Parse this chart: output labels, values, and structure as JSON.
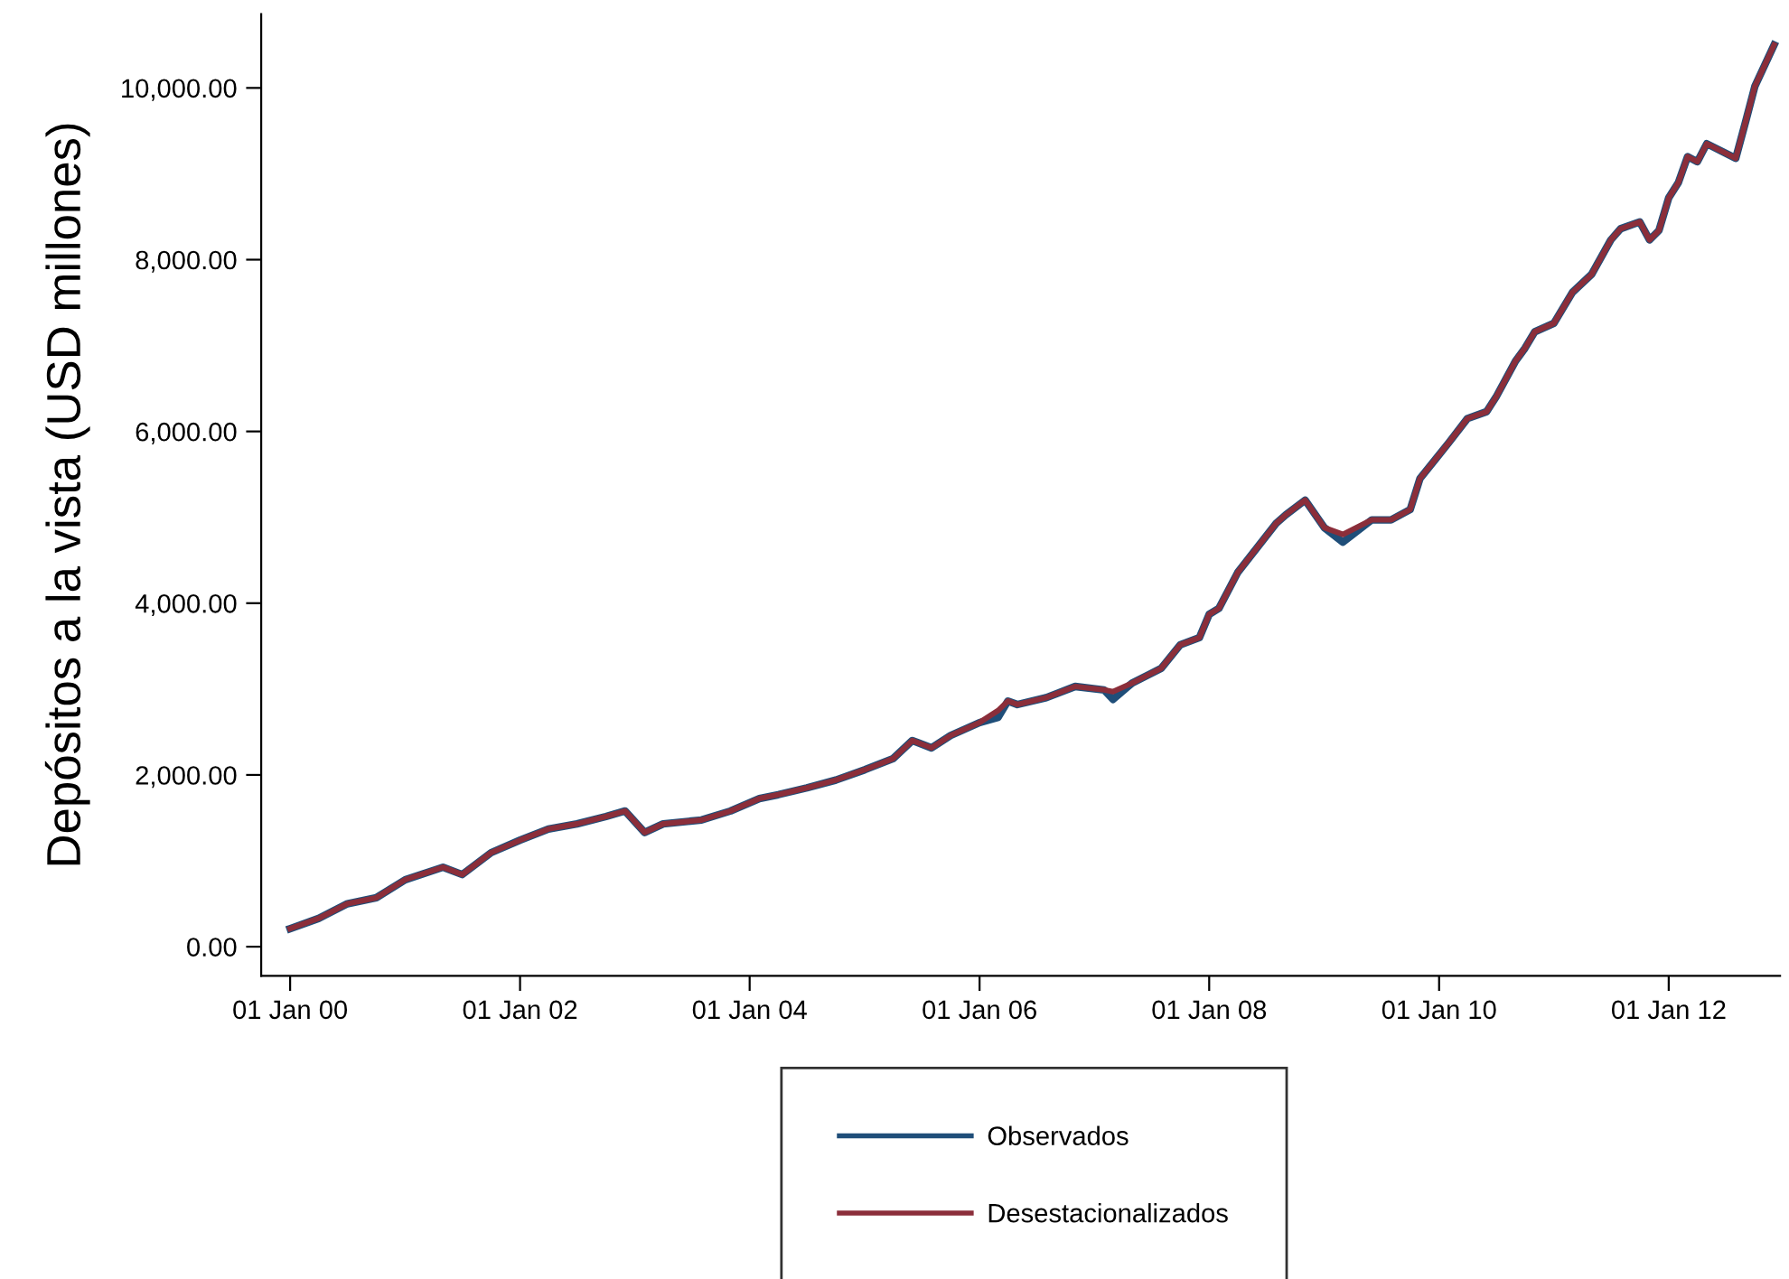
{
  "chart_data": {
    "type": "line",
    "ylabel": "Depósitos a la vista (USD millones)",
    "x": [
      "2000-01",
      "2000-04",
      "2000-07",
      "2000-10",
      "2001-01",
      "2001-05",
      "2001-07",
      "2001-10",
      "2002-01",
      "2002-04",
      "2002-07",
      "2002-10",
      "2002-12",
      "2003-02",
      "2003-04",
      "2003-08",
      "2003-11",
      "2004-02",
      "2004-04",
      "2004-07",
      "2004-10",
      "2005-01",
      "2005-04",
      "2005-06",
      "2005-08",
      "2005-10",
      "2006-01",
      "2006-03",
      "2006-04",
      "2006-05",
      "2006-08",
      "2006-11",
      "2007-02",
      "2007-03",
      "2007-05",
      "2007-08",
      "2007-10",
      "2007-12",
      "2008-01",
      "2008-02",
      "2008-04",
      "2008-08",
      "2008-09",
      "2008-11",
      "2009-01",
      "2009-03",
      "2009-06",
      "2009-08",
      "2009-10",
      "2009-11",
      "2010-02",
      "2010-04",
      "2010-06",
      "2010-07",
      "2010-09",
      "2010-10",
      "2010-11",
      "2011-01",
      "2011-03",
      "2011-05",
      "2011-07",
      "2011-08",
      "2011-10",
      "2011-11",
      "2011-12",
      "2012-01",
      "2012-02",
      "2012-03",
      "2012-04",
      "2012-05",
      "2012-08",
      "2012-09",
      "2012-10",
      "2012-12"
    ],
    "series": [
      {
        "name": "Observados",
        "color": "#1f4e79",
        "values": [
          210,
          330,
          500,
          570,
          780,
          925,
          840,
          1095,
          1240,
          1370,
          1430,
          1515,
          1580,
          1330,
          1430,
          1475,
          1580,
          1725,
          1770,
          1850,
          1940,
          2060,
          2190,
          2400,
          2315,
          2460,
          2610,
          2670,
          2860,
          2820,
          2900,
          3030,
          2990,
          2880,
          3070,
          3240,
          3515,
          3600,
          3870,
          3940,
          4360,
          4930,
          5030,
          5200,
          4880,
          4710,
          4970,
          4970,
          5090,
          5450,
          5870,
          6150,
          6230,
          6400,
          6820,
          6970,
          7160,
          7260,
          7620,
          7830,
          8230,
          8360,
          8440,
          8230,
          8340,
          8720,
          8900,
          9200,
          9140,
          9350,
          9180,
          9600,
          10020,
          10500
        ]
      },
      {
        "name": "Desestacionalizados",
        "color": "#8b2e3a",
        "values": [
          210,
          330,
          500,
          570,
          780,
          925,
          840,
          1095,
          1240,
          1370,
          1430,
          1515,
          1580,
          1330,
          1430,
          1475,
          1580,
          1725,
          1770,
          1850,
          1940,
          2060,
          2190,
          2400,
          2315,
          2460,
          2610,
          2750,
          2860,
          2820,
          2900,
          3030,
          2990,
          2970,
          3070,
          3240,
          3515,
          3600,
          3870,
          3940,
          4360,
          4930,
          5030,
          5200,
          4880,
          4800,
          4970,
          4970,
          5090,
          5450,
          5870,
          6150,
          6230,
          6400,
          6820,
          6970,
          7160,
          7260,
          7620,
          7830,
          8230,
          8360,
          8440,
          8230,
          8340,
          8720,
          8900,
          9200,
          9140,
          9350,
          9180,
          9600,
          10020,
          10500
        ]
      }
    ],
    "xlim": [
      "1999-10-01",
      "2012-12-20"
    ],
    "xticks": [
      {
        "value": "2000-01-01",
        "label": "01 Jan 00"
      },
      {
        "value": "2002-01-01",
        "label": "01 Jan 02"
      },
      {
        "value": "2004-01-01",
        "label": "01 Jan 04"
      },
      {
        "value": "2006-01-01",
        "label": "01 Jan 06"
      },
      {
        "value": "2008-01-01",
        "label": "01 Jan 08"
      },
      {
        "value": "2010-01-01",
        "label": "01 Jan 10"
      },
      {
        "value": "2012-01-01",
        "label": "01 Jan 12"
      }
    ],
    "ylim": [
      -340,
      10860
    ],
    "yticks": [
      {
        "value": 0,
        "label": "0.00"
      },
      {
        "value": 2000,
        "label": "2,000.00"
      },
      {
        "value": 4000,
        "label": "4,000.00"
      },
      {
        "value": 6000,
        "label": "6,000.00"
      },
      {
        "value": 8000,
        "label": "8,000.00"
      },
      {
        "value": 10000,
        "label": "10,000.00"
      }
    ],
    "grid": false,
    "legend": "bottom",
    "marker": "none",
    "line_style": "solid"
  }
}
